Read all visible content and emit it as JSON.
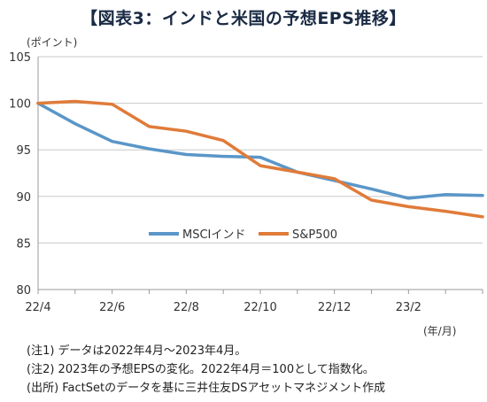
{
  "title": "【図表3：インドと米国の予想EPS推移】",
  "chart_data": {
    "type": "line",
    "y_unit_label": "(ポイント)",
    "x_unit_label": "(年/月)",
    "ylim": [
      80,
      105
    ],
    "yticks": [
      80,
      85,
      90,
      95,
      100,
      105
    ],
    "xticks": [
      "22/4",
      "22/6",
      "22/8",
      "22/10",
      "22/12",
      "23/2"
    ],
    "categories": [
      "22/4",
      "22/5",
      "22/6",
      "22/7",
      "22/8",
      "22/9",
      "22/10",
      "22/11",
      "22/12",
      "23/1",
      "23/2",
      "23/3",
      "23/4"
    ],
    "grid": "horizontal",
    "legend_position": "center",
    "series": [
      {
        "name": "MSCIインド",
        "color": "#5a96c8",
        "values": [
          100.0,
          97.8,
          95.9,
          95.1,
          94.5,
          94.3,
          94.2,
          92.6,
          91.7,
          90.8,
          89.8,
          90.2,
          90.1
        ]
      },
      {
        "name": "S&P500",
        "color": "#e07b39",
        "values": [
          100.0,
          100.2,
          99.9,
          97.5,
          97.0,
          96.0,
          93.3,
          92.6,
          91.9,
          89.6,
          88.9,
          88.4,
          87.8
        ]
      }
    ]
  },
  "notes": [
    "(注1) データは2022年4月～2023年4月。",
    "(注2) 2023年の予想EPSの変化。2022年4月＝100として指数化。",
    "(出所) FactSetのデータを基に三井住友DSアセットマネジメント作成"
  ]
}
